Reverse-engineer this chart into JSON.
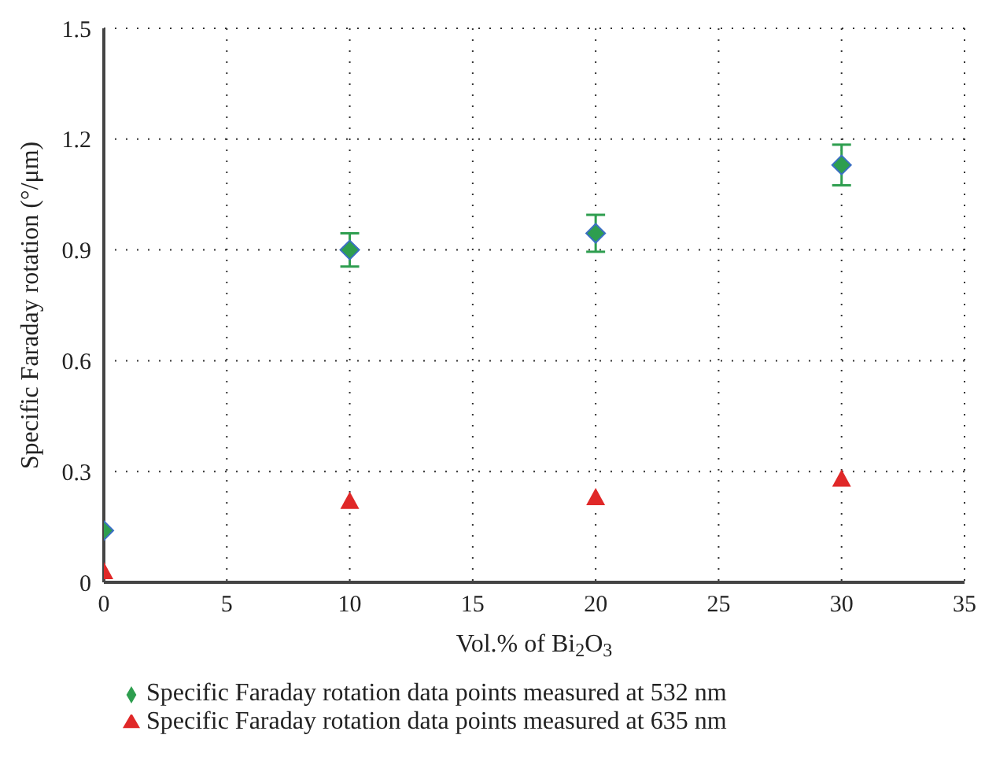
{
  "chart_data": {
    "type": "scatter",
    "xlabel": "Vol.% of Bi$_{2}$O$_{3}$",
    "ylabel": "Specific Faraday rotation (°/μm)",
    "x": [
      0,
      10,
      20,
      30
    ],
    "series": [
      {
        "name": "Specific Faraday rotation data points measured at 532 nm",
        "color": "#2e9e4f",
        "marker": "diamond",
        "values": [
          0.14,
          0.9,
          0.945,
          1.13
        ],
        "errors": [
          null,
          0.045,
          0.05,
          0.055
        ]
      },
      {
        "name": "Specific Faraday rotation data points measured at 635 nm",
        "color": "#e02828",
        "marker": "triangle",
        "values": [
          0.03,
          0.22,
          0.23,
          0.28
        ]
      }
    ],
    "xlim": [
      0,
      35
    ],
    "xticks": [
      0,
      5,
      10,
      15,
      20,
      25,
      30,
      35
    ],
    "ylim": [
      0,
      1.5
    ],
    "yticks": [
      0,
      {
        "value": 0.3,
        "label": "0.3"
      },
      {
        "value": 0.6,
        "label": "0.6"
      },
      {
        "value": 0.9,
        "label": "0.9"
      },
      {
        "value": 1.2,
        "label": "1.2"
      },
      {
        "value": 1.5,
        "label": "1.5"
      }
    ],
    "grid": true,
    "legend": "bottom"
  }
}
